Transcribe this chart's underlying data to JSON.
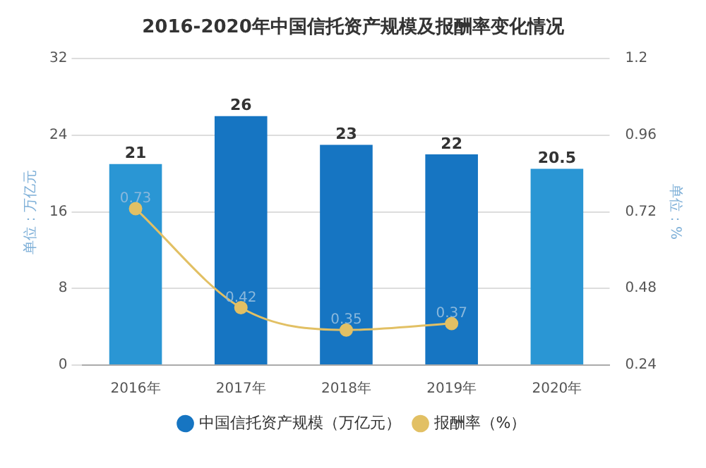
{
  "chart_data": {
    "type": "bar",
    "title": "2016-2020年中国信托资产规模及报酬率变化情况",
    "categories": [
      "2016年",
      "2017年",
      "2018年",
      "2019年",
      "2020年"
    ],
    "series": [
      {
        "name": "中国信托资产规模（万亿元）",
        "colors": [
          "#2a96d4",
          "#1675c2",
          "#1675c2",
          "#1675c2",
          "#2a96d4"
        ],
        "color": "#1675c2",
        "values": [
          21,
          26,
          23,
          22,
          20.5
        ]
      },
      {
        "name": "报酬率（%）",
        "type": "line",
        "axis": "y2",
        "color": "#e2c064",
        "values": [
          0.73,
          0.42,
          0.35,
          0.37,
          null
        ]
      }
    ],
    "ylabel": "单位：万亿元",
    "y2label": "单位：%",
    "ylim": [
      0,
      32
    ],
    "yticks": [
      0,
      8,
      16,
      24,
      32
    ],
    "y2lim": [
      0.24,
      1.2
    ],
    "y2ticks": [
      0.24,
      0.48,
      0.72,
      0.96,
      1.2
    ],
    "grid": "y",
    "legend": "bottom",
    "marker": "circle",
    "data_labels": true
  }
}
